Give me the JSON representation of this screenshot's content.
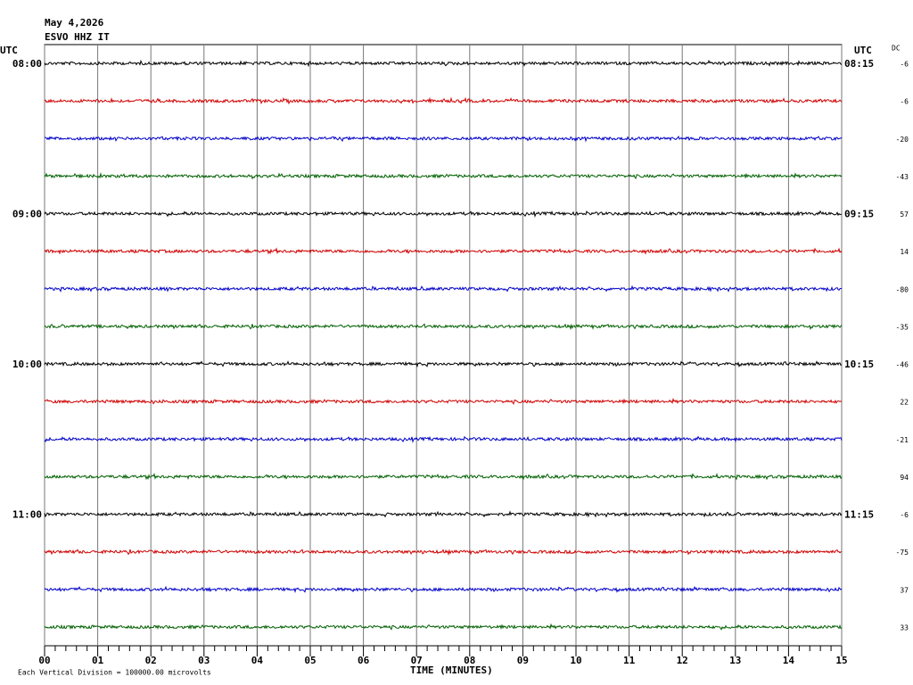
{
  "chart_data": {
    "type": "helicorder",
    "date": "May 4,2026",
    "station": "ESVO HHZ IT",
    "left_header": "UTC",
    "right_header": "UTC",
    "dc_header": "DC",
    "hour_labels": [
      {
        "left": "08:00",
        "right": "08:15"
      },
      {
        "left": "09:00",
        "right": "09:15"
      },
      {
        "left": "10:00",
        "right": "10:15"
      },
      {
        "left": "11:00",
        "right": "11:15"
      }
    ],
    "trace_colors": [
      "#000000",
      "#d00000",
      "#0000c8",
      "#006000"
    ],
    "dc": [
      -6,
      -6,
      -20,
      -43,
      57,
      14,
      -80,
      -35,
      -46,
      22,
      -21,
      94,
      -6,
      -75,
      37,
      33
    ],
    "xlabel": "TIME (MINUTES)",
    "xlim": [
      0,
      15
    ],
    "xticks": [
      {
        "value": 0,
        "label": "00"
      },
      {
        "value": 1,
        "label": "01"
      },
      {
        "value": 2,
        "label": "02"
      },
      {
        "value": 3,
        "label": "03"
      },
      {
        "value": 4,
        "label": "04"
      },
      {
        "value": 5,
        "label": "05"
      },
      {
        "value": 6,
        "label": "06"
      },
      {
        "value": 7,
        "label": "07"
      },
      {
        "value": 8,
        "label": "08"
      },
      {
        "value": 9,
        "label": "09"
      },
      {
        "value": 10,
        "label": "10"
      },
      {
        "value": 11,
        "label": "11"
      },
      {
        "value": 12,
        "label": "12"
      },
      {
        "value": 13,
        "label": "13"
      },
      {
        "value": 14,
        "label": "14"
      },
      15
    ],
    "grid": true,
    "footnote": "Each Vertical Division = 100000.00 microvolts"
  }
}
